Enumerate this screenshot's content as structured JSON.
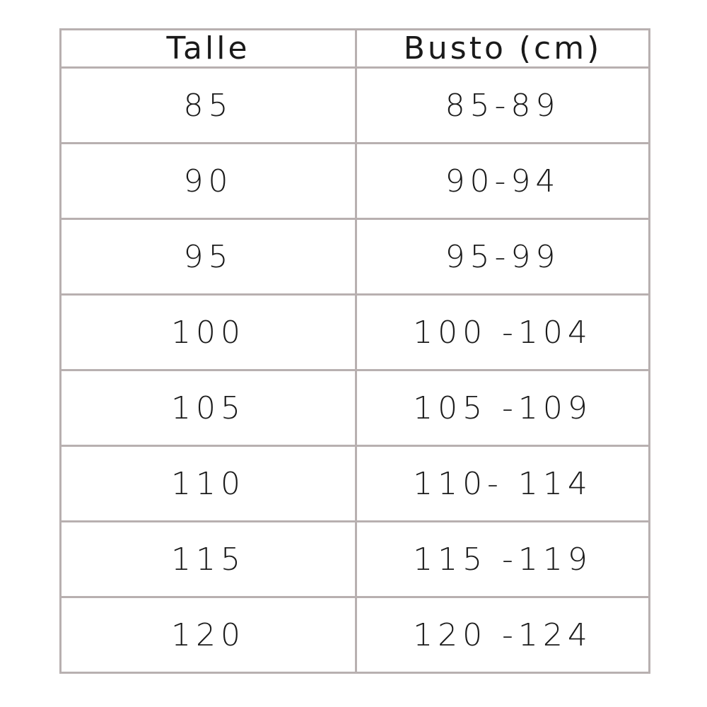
{
  "table": {
    "headers": [
      "Talle",
      "Busto (cm)"
    ],
    "rows": [
      [
        "85",
        "85-89"
      ],
      [
        "90",
        "90-94"
      ],
      [
        "95",
        "95-99"
      ],
      [
        "100",
        "100 -104"
      ],
      [
        "105",
        "105 -109"
      ],
      [
        "110",
        "110- 114"
      ],
      [
        "115",
        "115 -119"
      ],
      [
        "120",
        "120 -124"
      ]
    ],
    "border_color": "#b8b0b0"
  }
}
